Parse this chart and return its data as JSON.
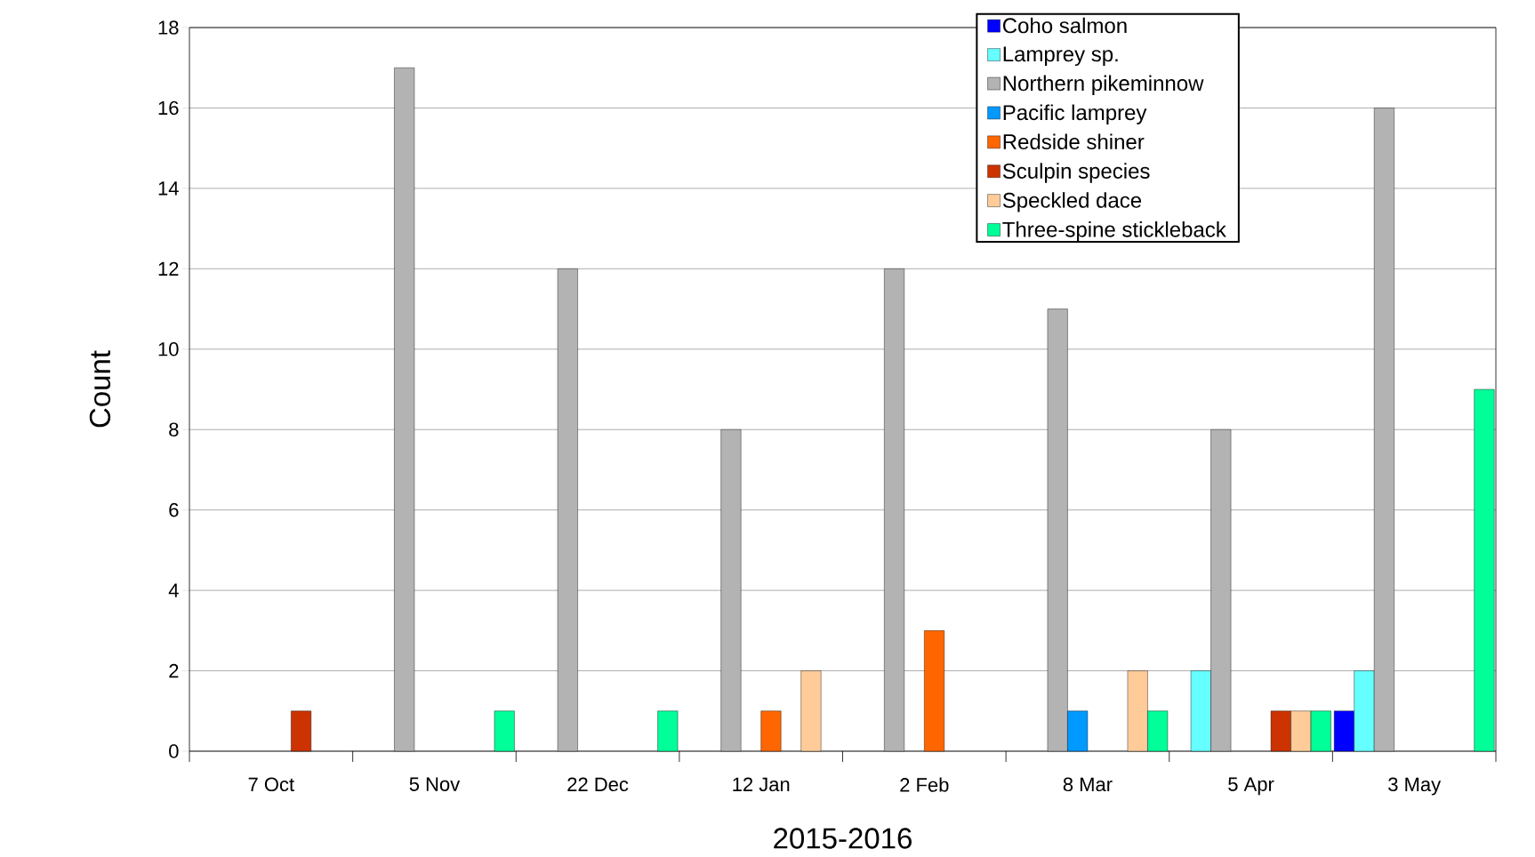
{
  "chart_data": {
    "type": "bar",
    "xlabel": "2015-2016",
    "ylabel": "Count",
    "categories": [
      "7 Oct",
      "5 Nov",
      "22 Dec",
      "12 Jan",
      "2 Feb",
      "8 Mar",
      "5 Apr",
      "3 May"
    ],
    "series": [
      {
        "name": "Coho salmon",
        "color": "#0000ff",
        "values": [
          null,
          null,
          null,
          null,
          null,
          null,
          null,
          1
        ]
      },
      {
        "name": "Lamprey sp.",
        "color": "#66ffff",
        "values": [
          null,
          null,
          null,
          null,
          null,
          null,
          2,
          2
        ]
      },
      {
        "name": "Northern pikeminnow",
        "color": "#b3b3b3",
        "values": [
          null,
          17,
          12,
          8,
          12,
          11,
          8,
          16
        ]
      },
      {
        "name": "Pacific lamprey",
        "color": "#0099ff",
        "values": [
          null,
          null,
          null,
          null,
          null,
          1,
          null,
          null
        ]
      },
      {
        "name": "Redside shiner",
        "color": "#ff6600",
        "values": [
          null,
          null,
          null,
          1,
          3,
          null,
          null,
          null
        ]
      },
      {
        "name": "Sculpin species",
        "color": "#cc3300",
        "values": [
          1,
          null,
          null,
          null,
          null,
          null,
          1,
          null
        ]
      },
      {
        "name": "Speckled dace",
        "color": "#ffcc99",
        "values": [
          null,
          null,
          null,
          2,
          null,
          2,
          1,
          null
        ]
      },
      {
        "name": "Three-spine stickleback",
        "color": "#00ff99",
        "values": [
          null,
          1,
          1,
          null,
          null,
          1,
          1,
          9
        ]
      }
    ],
    "ylim": [
      0,
      18
    ],
    "yticks": [
      0,
      2,
      4,
      6,
      8,
      10,
      12,
      14,
      16,
      18
    ],
    "grid": "y",
    "legend": "top right"
  }
}
